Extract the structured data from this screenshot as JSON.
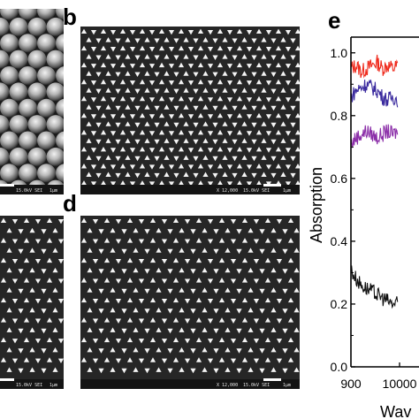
{
  "panels": {
    "a": {
      "sem": {
        "scalebar": "1µm",
        "voltage": "15.0kV SEI"
      }
    },
    "b": {
      "letter": "b",
      "sem": {
        "magnification": "X 12,000",
        "scalebar": "1µm",
        "voltage": "15.0kV SEI"
      }
    },
    "c": {
      "sem": {
        "scalebar": "1µm",
        "voltage": "15.0kV SEI"
      }
    },
    "d": {
      "letter": "d",
      "sem": {
        "magnification": "X 12,000",
        "scalebar": "1µm",
        "voltage": "15.0kV SEI"
      }
    },
    "e": {
      "letter": "e"
    }
  },
  "colors": {
    "red": "#ef2a1c",
    "blue": "#3a2a9e",
    "purple": "#8b2ea8",
    "black": "#111111",
    "sem_bg": "#262626"
  },
  "chart_data": {
    "type": "line",
    "ylabel": "Absorption",
    "xlabel": "Wav",
    "x_ticks": [
      "900",
      "10000"
    ],
    "y_ticks": [
      "0.0",
      "0.2",
      "0.4",
      "0.6",
      "0.8",
      "1.0"
    ],
    "ylim": [
      0,
      1.05
    ],
    "series": [
      {
        "color": "red",
        "x": [
          900,
          920,
          940,
          960,
          980,
          1000,
          1020,
          1040,
          1060,
          1080
        ],
        "y": [
          0.95,
          0.96,
          0.94,
          0.95,
          0.96,
          0.97,
          0.95,
          0.96,
          0.95,
          0.96
        ]
      },
      {
        "color": "blue",
        "x": [
          900,
          920,
          940,
          960,
          980,
          1000,
          1020,
          1040,
          1060,
          1080
        ],
        "y": [
          0.86,
          0.88,
          0.89,
          0.9,
          0.89,
          0.88,
          0.86,
          0.85,
          0.86,
          0.85
        ]
      },
      {
        "color": "purple",
        "x": [
          900,
          920,
          940,
          960,
          980,
          1000,
          1020,
          1040,
          1060,
          1080
        ],
        "y": [
          0.71,
          0.73,
          0.74,
          0.75,
          0.74,
          0.73,
          0.74,
          0.75,
          0.74,
          0.75
        ]
      },
      {
        "color": "black",
        "x": [
          900,
          920,
          940,
          960,
          980,
          1000,
          1020,
          1040,
          1060,
          1080
        ],
        "y": [
          0.31,
          0.28,
          0.26,
          0.25,
          0.24,
          0.23,
          0.22,
          0.21,
          0.2,
          0.2
        ]
      }
    ]
  }
}
